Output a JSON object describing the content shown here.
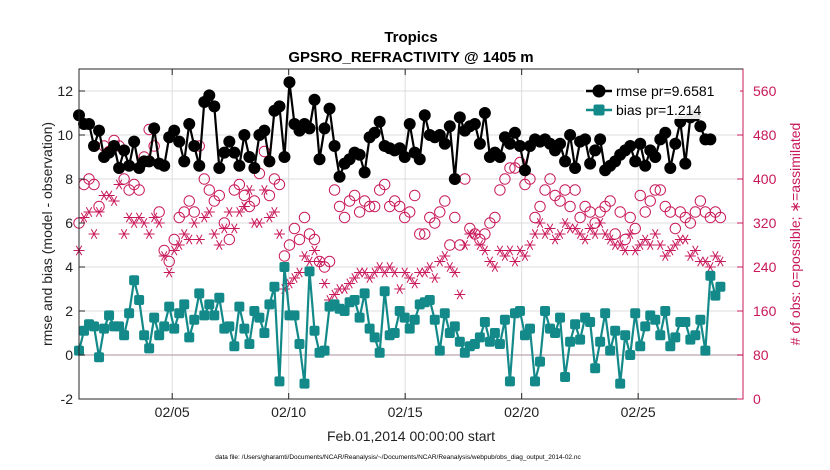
{
  "chart_data": {
    "type": "line",
    "title": "Tropics",
    "subtitle": "GPSRO_REFRACTIVITY @ 1405 m",
    "xlabel": "Feb.01,2014 00:00:00 start",
    "ylabel": "rmse and bias (model - observation)",
    "y2label": "# of obs: o=possible; ∗=assimilated",
    "footer": "data file: /Users/gharamti/Documents/NCAR/Reanalysis/~/Documents/NCAR/Reanalysis/webpub/obs_diag_output_2014-02.nc",
    "xlim": [
      1,
      29.5
    ],
    "ylim": [
      -2,
      13
    ],
    "y2lim": [
      0,
      600
    ],
    "x_ticks": [
      5,
      10,
      15,
      20,
      25
    ],
    "x_tick_labels": [
      "02/05",
      "02/10",
      "02/15",
      "02/20",
      "02/25"
    ],
    "y_ticks": [
      -2,
      0,
      2,
      4,
      6,
      8,
      10,
      12
    ],
    "y_tick_labels": [
      "-2",
      "0",
      "2",
      "4",
      "6",
      "8",
      "10",
      "12"
    ],
    "y2_ticks": [
      0,
      80,
      160,
      240,
      320,
      400,
      480,
      560
    ],
    "y2_tick_labels": [
      "0",
      "80",
      "160",
      "240",
      "320",
      "400",
      "480",
      "560"
    ],
    "zero_line": 0,
    "legend": {
      "position": "top-right",
      "entries": [
        "rmse pr=9.6581",
        "bias pr=1.214"
      ]
    },
    "colors": {
      "rmse": "#000000",
      "bias": "#138a89",
      "obs": "#c8195a",
      "zero": "#c8b3bd"
    },
    "series": [
      {
        "name": "rmse pr=9.6581",
        "values": [
          10.9,
          10.5,
          10.5,
          9.5,
          10.2,
          9.0,
          9.2,
          9.5,
          8.5,
          9.3,
          8.6,
          9.7,
          8.5,
          8.8,
          8.8,
          10.3,
          8.7,
          8.6,
          9.9,
          10.2,
          9.7,
          8.8,
          10.5,
          9.5,
          8.6,
          11.5,
          11.8,
          11.3,
          8.5,
          9.2,
          9.7,
          9.2,
          8.6,
          10.0,
          9.0,
          8.5,
          10.0,
          10.2,
          8.8,
          11.1,
          11.3,
          9.0,
          12.4,
          10.5,
          10.2,
          10.5,
          10.3,
          11.6,
          8.9,
          10.3,
          11.2,
          9.5,
          8.1,
          8.7,
          8.9,
          9.2,
          9.1,
          8.3,
          9.9,
          10.1,
          10.6,
          9.5,
          9.4,
          9.3,
          9.4,
          9.0,
          10.5,
          9.2,
          8.9,
          10.9,
          10.0,
          9.9,
          10.0,
          9.6,
          10.4,
          8.0,
          10.8,
          10.2,
          10.4,
          10.5,
          9.6,
          11.0,
          9.0,
          9.2,
          9.0,
          9.9,
          9.6,
          10.1,
          9.5,
          8.4,
          9.5,
          9.8,
          9.7,
          9.8,
          9.6,
          9.3,
          9.6,
          8.8,
          10.0,
          8.5,
          9.7,
          9.8,
          8.7,
          9.3,
          9.8,
          8.4,
          8.6,
          8.8,
          9.1,
          9.3,
          9.5,
          8.8,
          9.6,
          8.6,
          9.3,
          9.0,
          9.8,
          10.1,
          8.5,
          9.6,
          10.6,
          8.7,
          10.8,
          10.9,
          10.4,
          9.8,
          9.8
        ]
      },
      {
        "name": "bias pr=1.214",
        "values": [
          0.2,
          1.1,
          1.4,
          1.3,
          -0.1,
          1.2,
          1.8,
          1.3,
          1.3,
          0.9,
          1.9,
          3.4,
          2.5,
          0.9,
          0.3,
          1.7,
          0.9,
          1.3,
          2.2,
          1.2,
          1.9,
          2.3,
          0.8,
          1.6,
          2.8,
          1.8,
          2.3,
          1.8,
          2.6,
          1.2,
          1.3,
          0.4,
          2.2,
          1.2,
          0.5,
          2.0,
          1.7,
          1.0,
          2.3,
          3.1,
          -1.2,
          4.0,
          1.8,
          1.8,
          0.5,
          -1.3,
          3.8,
          1.1,
          0.1,
          0.2,
          2.2,
          2.3,
          2.1,
          2.0,
          2.4,
          2.5,
          1.7,
          2.8,
          1.2,
          0.8,
          0.1,
          2.9,
          0.9,
          1.0,
          2.0,
          1.7,
          1.2,
          1.6,
          2.3,
          2.4,
          2.5,
          1.6,
          0.2,
          1.9,
          1.0,
          1.3,
          0.6,
          0.1,
          0.4,
          0.5,
          0.8,
          1.5,
          0.6,
          1.0,
          0.5,
          1.6,
          -1.2,
          1.9,
          2.0,
          0.9,
          1.2,
          -1.2,
          -0.3,
          2.0,
          1.2,
          1.0,
          1.7,
          -1.0,
          0.6,
          1.4,
          0.7,
          1.7,
          1.5,
          -0.6,
          0.6,
          1.9,
          0.2,
          1.1,
          -1.3,
          0.9,
          0.0,
          1.9,
          0.4,
          1.3,
          1.8,
          1.6,
          0.9,
          2.0,
          0.4,
          0.8,
          1.5,
          1.5,
          0.7,
          0.9,
          1.6,
          0.2,
          3.6,
          2.7,
          3.1
        ]
      },
      {
        "name": "possible",
        "axis": "right",
        "values": [
          320,
          390,
          400,
          390,
          350,
          460,
          450,
          470,
          460,
          400,
          380,
          390,
          380,
          440,
          490,
          460,
          340,
          270,
          250,
          290,
          330,
          340,
          360,
          340,
          460,
          400,
          380,
          360,
          370,
          320,
          290,
          380,
          390,
          370,
          350,
          360,
          410,
          450,
          370,
          400,
          390,
          260,
          280,
          310,
          290,
          330,
          300,
          290,
          250,
          240,
          250,
          380,
          350,
          330,
          360,
          370,
          340,
          360,
          350,
          350,
          380,
          390,
          350,
          360,
          350,
          330,
          340,
          370,
          300,
          300,
          330,
          320,
          340,
          360,
          280,
          330,
          280,
          400,
          310,
          300,
          290,
          300,
          320,
          330,
          380,
          400,
          420,
          420,
          430,
          390,
          400,
          330,
          350,
          380,
          400,
          370,
          360,
          380,
          350,
          380,
          330,
          350,
          340,
          320,
          340,
          350,
          360,
          300,
          340,
          290,
          330,
          310,
          370,
          340,
          360,
          380,
          380,
          350,
          340,
          310,
          340,
          330,
          320,
          340,
          360,
          340,
          330,
          340,
          330
        ]
      },
      {
        "name": "assimilated",
        "axis": "right",
        "values": [
          270,
          330,
          340,
          300,
          340,
          370,
          370,
          360,
          390,
          300,
          330,
          320,
          330,
          320,
          300,
          330,
          320,
          260,
          230,
          270,
          280,
          300,
          290,
          320,
          290,
          330,
          340,
          300,
          280,
          310,
          340,
          310,
          340,
          350,
          380,
          320,
          320,
          380,
          330,
          340,
          300,
          200,
          210,
          220,
          230,
          260,
          250,
          270,
          250,
          210,
          180,
          190,
          200,
          200,
          210,
          220,
          230,
          230,
          220,
          230,
          240,
          230,
          240,
          230,
          200,
          230,
          220,
          210,
          230,
          230,
          240,
          220,
          250,
          260,
          240,
          230,
          190,
          280,
          300,
          300,
          280,
          270,
          250,
          240,
          270,
          260,
          270,
          250,
          270,
          260,
          280,
          300,
          320,
          300,
          310,
          290,
          300,
          320,
          310,
          310,
          300,
          290,
          310,
          300,
          320,
          300,
          290,
          280,
          280,
          270,
          300,
          270,
          280,
          290,
          280,
          300,
          280,
          260,
          270,
          280,
          290,
          290,
          260,
          270,
          250,
          250,
          240,
          260,
          250
        ]
      }
    ]
  }
}
